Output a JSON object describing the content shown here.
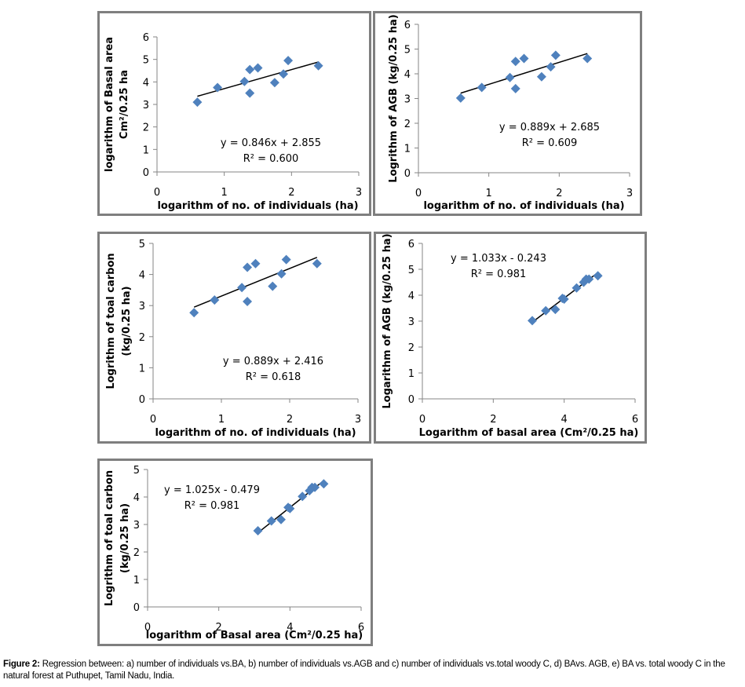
{
  "caption": {
    "label": "Figure 2:",
    "text": " Regression between: a) number of individuals vs.BA, b) number of individuals vs.AGB  and c) number of individuals vs.total woody C, d) BAvs. AGB, e) BA vs. total woody C in the natural forest  at Puthupet, Tamil Nadu, India."
  },
  "colors": {
    "marker": "#4F81BD",
    "trendline": "#000000",
    "axis": "#868686",
    "border": "#7f7f7f"
  },
  "chart_data": [
    {
      "id": "a",
      "type": "scatter",
      "title": "",
      "xlabel": "logarithm of no. of individuals (ha)",
      "ylabel": [
        "logarithm of Basal area",
        "Cm²/0.25 ha"
      ],
      "xlim": [
        0,
        3
      ],
      "ylim": [
        0,
        6
      ],
      "xticks": [
        0,
        1,
        2,
        3
      ],
      "yticks": [
        0,
        1,
        2,
        3,
        4,
        5,
        6
      ],
      "grid": false,
      "x": [
        0.6,
        0.9,
        1.3,
        1.38,
        1.38,
        1.5,
        1.75,
        1.88,
        1.95,
        2.4
      ],
      "y": [
        3.1,
        3.75,
        4.02,
        4.55,
        3.5,
        4.62,
        3.97,
        4.35,
        4.95,
        4.72
      ],
      "trendline": {
        "slope": 0.846,
        "intercept": 2.855,
        "x_range": [
          0.6,
          2.4
        ]
      },
      "equation": "y = 0.846x + 2.855",
      "r_squared": "R² = 0.600",
      "equation_position": "bottom-right"
    },
    {
      "id": "b",
      "type": "scatter",
      "title": "",
      "xlabel": "logarithm of no. of individuals (ha)",
      "ylabel": [
        "Logrithm of AGB (kg/0.25 ha)"
      ],
      "xlim": [
        0,
        3
      ],
      "ylim": [
        0,
        6
      ],
      "xticks": [
        0,
        1,
        2,
        3
      ],
      "yticks": [
        0,
        1,
        2,
        3,
        4,
        5,
        6
      ],
      "grid": false,
      "x": [
        0.6,
        0.9,
        1.3,
        1.38,
        1.38,
        1.5,
        1.75,
        1.88,
        1.95,
        2.4
      ],
      "y": [
        3.02,
        3.45,
        3.85,
        4.5,
        3.4,
        4.62,
        3.88,
        4.28,
        4.75,
        4.62
      ],
      "trendline": {
        "slope": 0.889,
        "intercept": 2.685,
        "x_range": [
          0.6,
          2.4
        ]
      },
      "equation": "y = 0.889x + 2.685",
      "r_squared": "R² = 0.609",
      "equation_position": "bottom-right"
    },
    {
      "id": "c",
      "type": "scatter",
      "title": "",
      "xlabel": "logarithm of no. of individuals (ha)",
      "ylabel": [
        "Logrithm of toal carbon",
        "(kg/0.25 ha)"
      ],
      "xlim": [
        0,
        3
      ],
      "ylim": [
        0,
        5
      ],
      "xticks": [
        0,
        1,
        2,
        3
      ],
      "yticks": [
        0,
        1,
        2,
        3,
        4,
        5
      ],
      "grid": false,
      "x": [
        0.6,
        0.9,
        1.3,
        1.38,
        1.38,
        1.5,
        1.75,
        1.88,
        1.95,
        2.4
      ],
      "y": [
        2.77,
        3.18,
        3.58,
        4.23,
        3.13,
        4.35,
        3.62,
        4.02,
        4.48,
        4.35
      ],
      "trendline": {
        "slope": 0.889,
        "intercept": 2.416,
        "x_range": [
          0.6,
          2.4
        ]
      },
      "equation": "y = 0.889x + 2.416",
      "r_squared": "R² = 0.618",
      "equation_position": "bottom-right"
    },
    {
      "id": "d",
      "type": "scatter",
      "title": "",
      "xlabel": "Logarithm of basal area (Cm²/0.25 ha)",
      "ylabel": [
        "Logarithm of AGB (kg/0.25 ha)"
      ],
      "xlim": [
        0,
        6
      ],
      "ylim": [
        0,
        6
      ],
      "xticks": [
        0,
        2,
        4,
        6
      ],
      "yticks": [
        0,
        1,
        2,
        3,
        4,
        5,
        6
      ],
      "grid": false,
      "x": [
        3.1,
        3.48,
        3.75,
        3.95,
        4.0,
        4.35,
        4.55,
        4.62,
        4.7,
        4.95
      ],
      "y": [
        3.02,
        3.4,
        3.45,
        3.88,
        3.85,
        4.28,
        4.5,
        4.62,
        4.62,
        4.75
      ],
      "trendline": {
        "slope": 1.033,
        "intercept": -0.243,
        "x_range": [
          3.1,
          4.95
        ]
      },
      "equation": "y = 1.033x - 0.243",
      "r_squared": "R² = 0.981",
      "equation_position": "top-left"
    },
    {
      "id": "e",
      "type": "scatter",
      "title": "",
      "xlabel": "logarithm of Basal area (Cm²/0.25 ha)",
      "ylabel": [
        "Logrithm of toal carbon",
        "(kg/0.25 ha)"
      ],
      "xlim": [
        0,
        6
      ],
      "ylim": [
        0,
        5
      ],
      "xticks": [
        0,
        2,
        4,
        6
      ],
      "yticks": [
        0,
        1,
        2,
        3,
        4,
        5
      ],
      "grid": false,
      "x": [
        3.1,
        3.48,
        3.75,
        3.95,
        4.0,
        4.35,
        4.55,
        4.62,
        4.7,
        4.95
      ],
      "y": [
        2.77,
        3.13,
        3.18,
        3.62,
        3.58,
        4.02,
        4.23,
        4.35,
        4.35,
        4.48
      ],
      "trendline": {
        "slope": 1.025,
        "intercept": -0.479,
        "x_range": [
          3.1,
          4.95
        ]
      },
      "equation": "y = 1.025x - 0.479",
      "r_squared": "R² = 0.981",
      "equation_position": "top-left"
    }
  ]
}
